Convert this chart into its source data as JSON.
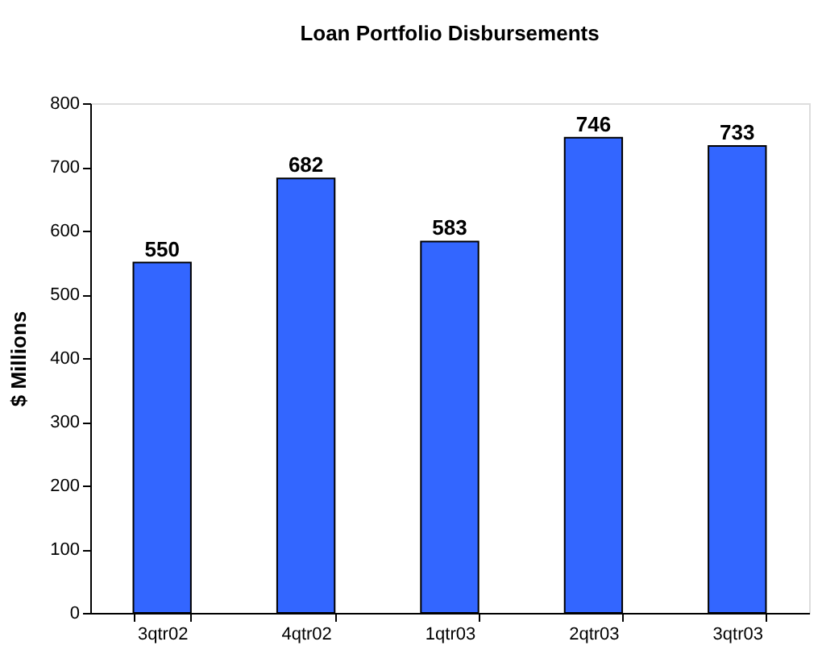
{
  "chart_data": {
    "type": "bar",
    "title": "Loan Portfolio Disbursements",
    "ylabel": "$ Millions",
    "categories": [
      "3qtr02",
      "4qtr02",
      "1qtr03",
      "2qtr03",
      "3qtr03"
    ],
    "values": [
      550,
      682,
      583,
      746,
      733
    ],
    "color": "#3366ff",
    "ylim": [
      0,
      800
    ],
    "yticks": [
      0,
      100,
      200,
      300,
      400,
      500,
      600,
      700,
      800
    ],
    "grid": false,
    "data_labels": true
  }
}
